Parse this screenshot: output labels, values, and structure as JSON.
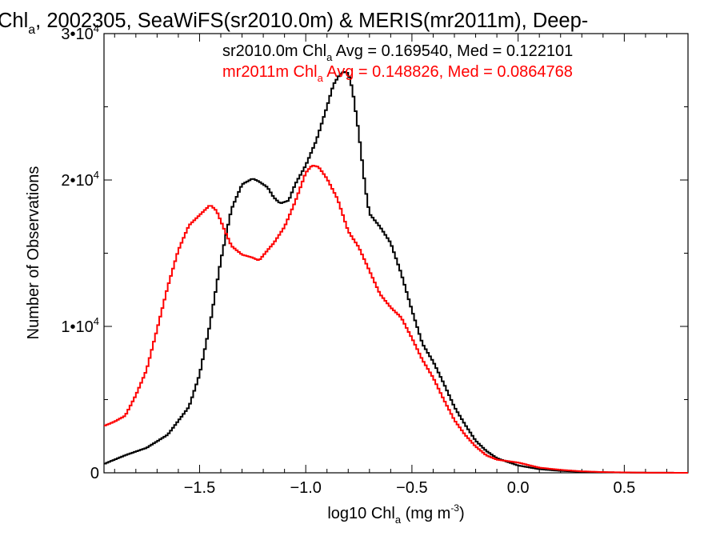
{
  "chart_data": {
    "type": "line",
    "title_main": "Chl",
    "title_sub": "a",
    "title_rest": ", 2002305, SeaWiFS(sr2010.0m) & MERIS(mr2011m), Deep-",
    "xlabel_pre": "log10 Chl",
    "xlabel_sub": "a",
    "xlabel_post": " (mg m",
    "xlabel_sup": "-3",
    "xlabel_close": ")",
    "ylabel": "Number of Observations",
    "xlim": [
      -1.95,
      0.8
    ],
    "ylim": [
      0,
      30000
    ],
    "xticks": [
      {
        "value": -1.5,
        "label": "−1.5"
      },
      {
        "value": -1.0,
        "label": "−1.0"
      },
      {
        "value": -0.5,
        "label": "−0.5"
      },
      {
        "value": 0.0,
        "label": "0.0"
      },
      {
        "value": 0.5,
        "label": "0.5"
      }
    ],
    "yticks": [
      {
        "value": 0,
        "base": "0",
        "exp": ""
      },
      {
        "value": 10000,
        "base": "1•10",
        "exp": "4"
      },
      {
        "value": 20000,
        "base": "2•10",
        "exp": "4"
      },
      {
        "value": 30000,
        "base": "3•10",
        "exp": "4"
      }
    ],
    "stats": [
      {
        "pre": "sr2010.0m Chl",
        "sub": "a",
        "post": " Avg = 0.169540, Med = 0.122101",
        "color": "#000000"
      },
      {
        "pre": "mr2011m Chl",
        "sub": "a",
        "post": " Avg = 0.148826, Med = 0.0864768",
        "color": "#ff0000"
      }
    ],
    "series": [
      {
        "color": "#000000",
        "x": [
          -1.95,
          -1.85,
          -1.75,
          -1.65,
          -1.55,
          -1.5,
          -1.45,
          -1.4,
          -1.35,
          -1.3,
          -1.25,
          -1.22,
          -1.18,
          -1.15,
          -1.12,
          -1.08,
          -1.05,
          -1.0,
          -0.95,
          -0.9,
          -0.87,
          -0.84,
          -0.82,
          -0.8,
          -0.78,
          -0.75,
          -0.72,
          -0.7,
          -0.65,
          -0.6,
          -0.55,
          -0.5,
          -0.45,
          -0.4,
          -0.35,
          -0.3,
          -0.25,
          -0.2,
          -0.15,
          -0.1,
          0.0,
          0.1,
          0.2,
          0.3,
          0.4,
          0.5,
          0.6,
          0.8
        ],
        "y": [
          600,
          1200,
          1700,
          2600,
          4500,
          6700,
          10200,
          14500,
          18000,
          19700,
          20100,
          19900,
          19500,
          18800,
          18400,
          18600,
          19700,
          21000,
          22700,
          25000,
          26500,
          27200,
          27400,
          27300,
          26200,
          23200,
          19500,
          17700,
          16800,
          15700,
          13600,
          11100,
          8800,
          7600,
          6100,
          4500,
          3300,
          2200,
          1500,
          1000,
          500,
          250,
          130,
          70,
          40,
          20,
          10,
          0
        ]
      },
      {
        "color": "#ff0000",
        "x": [
          -1.95,
          -1.9,
          -1.85,
          -1.8,
          -1.75,
          -1.7,
          -1.65,
          -1.6,
          -1.55,
          -1.5,
          -1.45,
          -1.42,
          -1.38,
          -1.35,
          -1.3,
          -1.25,
          -1.22,
          -1.18,
          -1.15,
          -1.1,
          -1.05,
          -1.0,
          -0.97,
          -0.94,
          -0.9,
          -0.85,
          -0.8,
          -0.75,
          -0.7,
          -0.65,
          -0.6,
          -0.55,
          -0.5,
          -0.45,
          -0.4,
          -0.35,
          -0.3,
          -0.25,
          -0.2,
          -0.15,
          -0.1,
          0.0,
          0.1,
          0.2,
          0.3,
          0.4,
          0.5,
          0.6,
          0.8
        ],
        "y": [
          3200,
          3500,
          3900,
          5300,
          7000,
          9800,
          12700,
          15200,
          16900,
          17600,
          18300,
          17900,
          16500,
          15500,
          14900,
          14700,
          14500,
          15200,
          15700,
          16800,
          18500,
          20500,
          21000,
          20900,
          20100,
          18700,
          16500,
          15400,
          13800,
          12200,
          11300,
          10600,
          9200,
          7700,
          6500,
          5000,
          3600,
          2600,
          1800,
          1200,
          900,
          700,
          350,
          200,
          100,
          50,
          25,
          10,
          0
        ]
      }
    ]
  }
}
